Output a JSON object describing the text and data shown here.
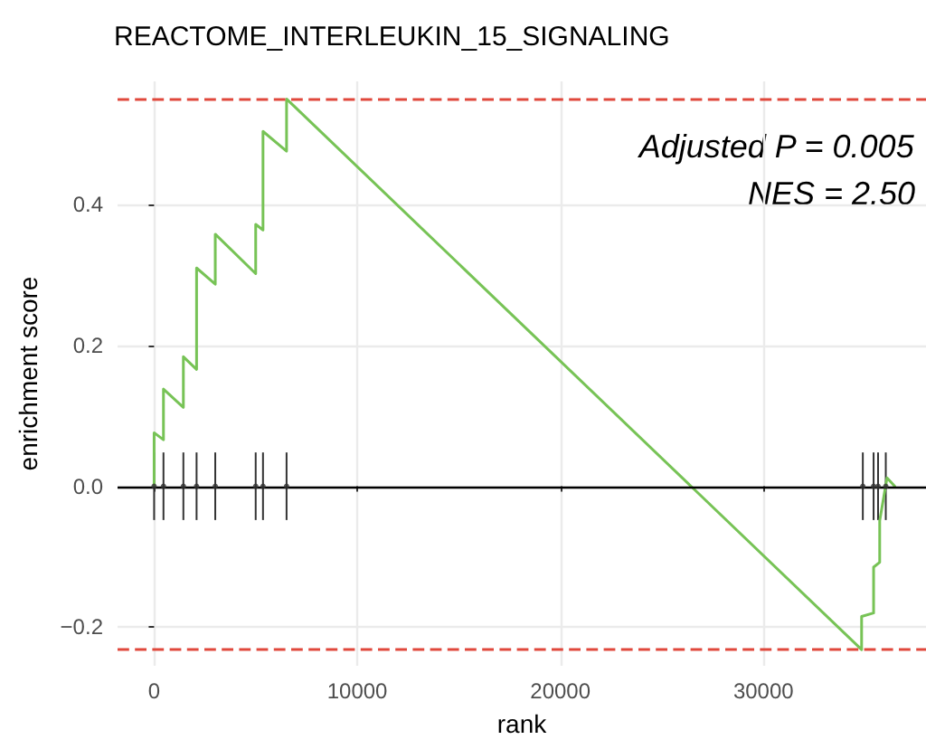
{
  "chart_data": {
    "type": "line",
    "title": "REACTOME_INTERLEUKIN_15_SIGNALING",
    "xlabel": "rank",
    "ylabel": "enrichment score",
    "annotations": [
      "Adjusted P = 0.005",
      "NES = 2.50"
    ],
    "series": [
      {
        "color": "#77c356",
        "marker": "none",
        "x": [
          0,
          0,
          460,
          460,
          1440,
          1440,
          2090,
          2090,
          3010,
          3010,
          5000,
          5000,
          5360,
          5360,
          6520,
          6520,
          34830,
          34830,
          35420,
          35420,
          35720,
          35720,
          36080,
          36460
        ],
        "values": [
          0,
          0.076,
          0.066,
          0.138,
          0.112,
          0.184,
          0.166,
          0.31,
          0.287,
          0.358,
          0.302,
          0.372,
          0.364,
          0.504,
          0.476,
          0.55,
          -0.232,
          -0.185,
          -0.18,
          -0.115,
          -0.108,
          -0.049,
          0.012,
          0.0
        ]
      },
      {
        "type": "scatter",
        "color": "#333333",
        "marker": "circle",
        "x": [
          0,
          460,
          1440,
          2090,
          3010,
          5000,
          5360,
          6520,
          34890,
          35420,
          35640,
          36020
        ],
        "values": [
          0,
          0,
          0,
          0,
          0,
          0,
          0,
          0,
          0,
          0,
          0,
          0
        ],
        "errors": [
          0.048,
          0.048,
          0.048,
          0.048,
          0.048,
          0.048,
          0.048,
          0.048,
          0.048,
          0.048,
          0.048,
          0.048
        ]
      }
    ],
    "ref_lines": [
      {
        "axis": "y",
        "value": 0,
        "color": "#000000",
        "line_style": "solid"
      },
      {
        "axis": "y",
        "value": 0.55,
        "color": "#e0483c",
        "line_style": "dashed"
      },
      {
        "axis": "y",
        "value": -0.232,
        "color": "#e0483c",
        "line_style": "dashed"
      }
    ],
    "line_style": "solid",
    "grid": true,
    "xlim": [
      -1800,
      38000
    ],
    "xticks": [
      0,
      10000,
      20000,
      30000
    ],
    "ylim": [
      -0.255,
      0.575
    ],
    "yticks": [
      {
        "value": -0.2,
        "label": "−0.2"
      },
      {
        "value": 0,
        "label": "0.0"
      },
      {
        "value": 0.2,
        "label": "0.2"
      },
      {
        "value": 0.4,
        "label": "0.4"
      }
    ]
  }
}
